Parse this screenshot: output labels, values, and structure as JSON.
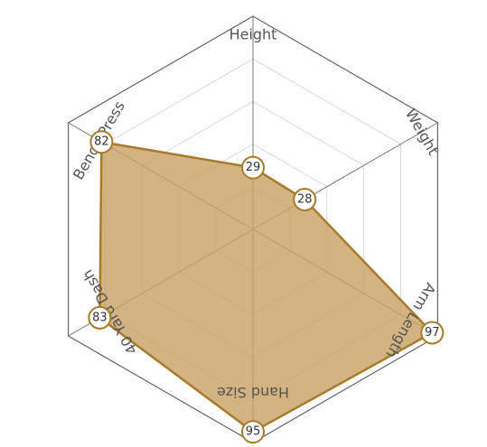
{
  "chart_data": {
    "type": "radar",
    "axes": [
      "Height",
      "Weight",
      "Arm Length",
      "Hand Size",
      "40 Yard Dash",
      "Bench Press"
    ],
    "values": [
      29,
      28,
      97,
      95,
      83,
      82
    ],
    "value_labels": [
      "29",
      "28",
      "97",
      "95",
      "83",
      "82"
    ],
    "range": [
      0,
      100
    ],
    "rings": 5,
    "grid": true,
    "fill_color": "#c8a265",
    "stroke_color": "#a67c2a"
  }
}
